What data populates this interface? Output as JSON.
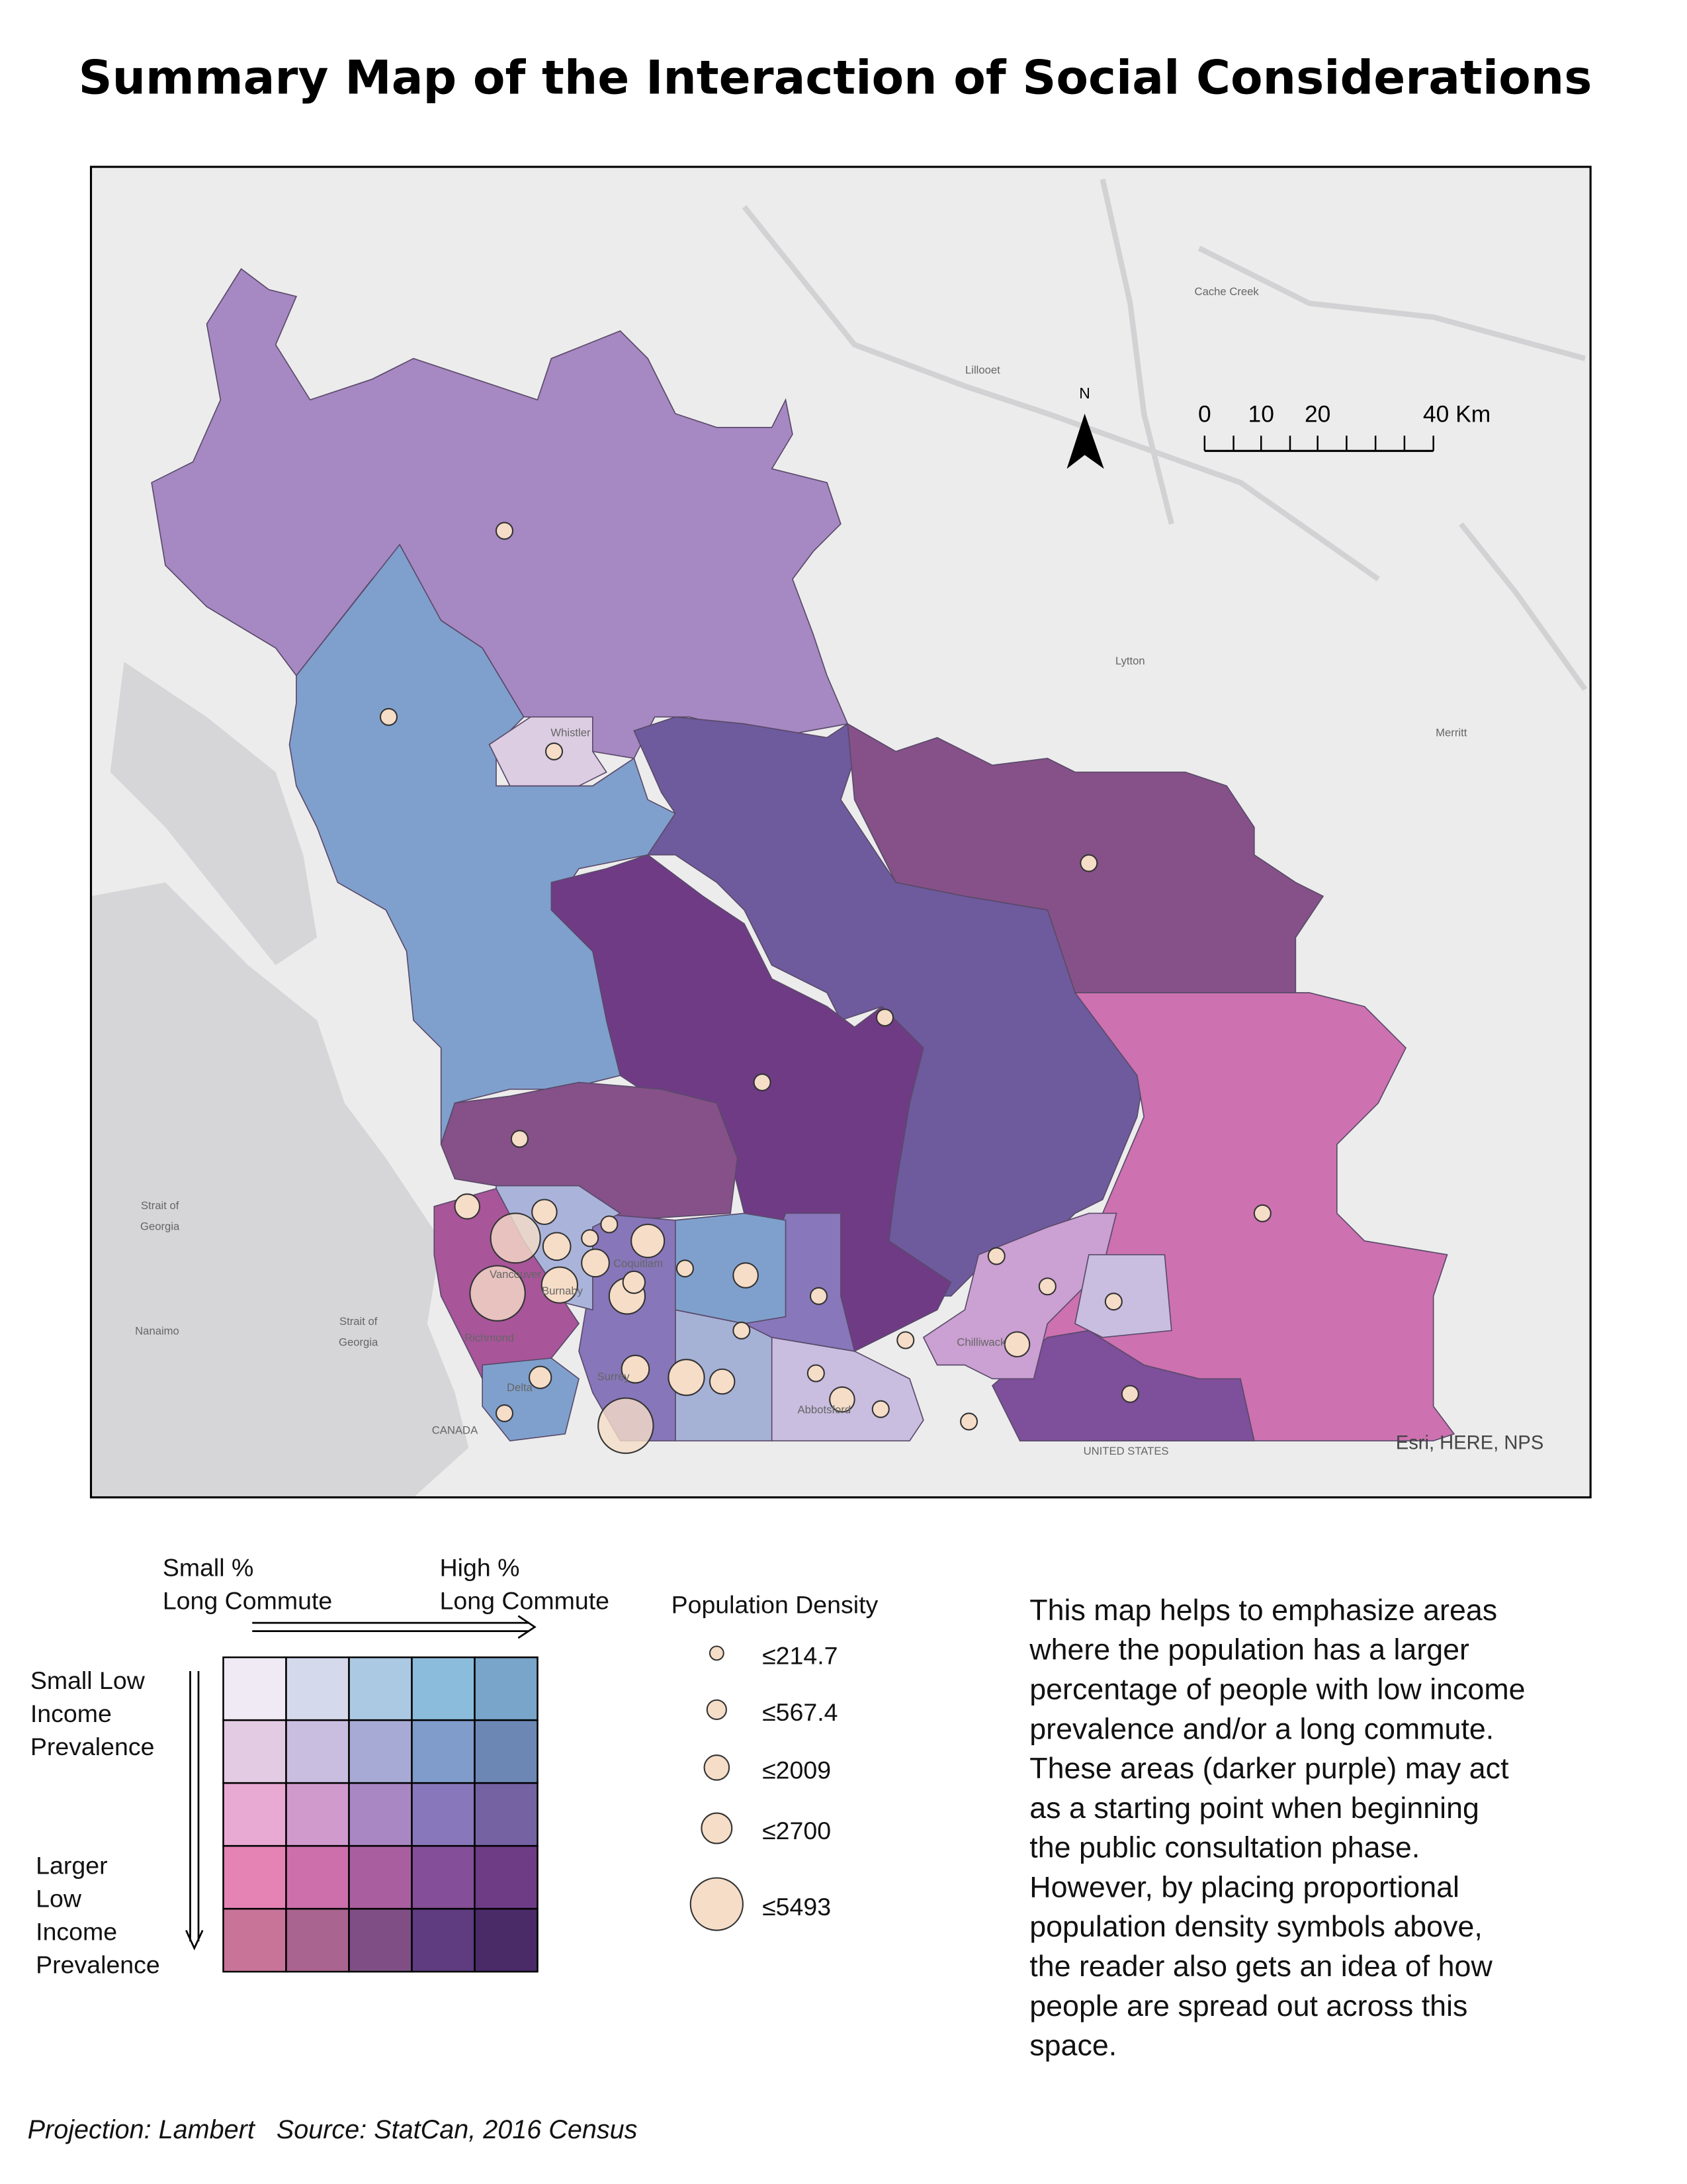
{
  "title": "Summary Map of the Interaction of Social Considerations",
  "map": {
    "labels": [
      "Cache Creek",
      "Lillooet",
      "Lytton",
      "Merritt",
      "Whistler",
      "Nanaimo",
      "Strait of",
      "Georgia",
      "Strait of",
      "Georgia",
      "Chilliwack",
      "Abbotsford",
      "Richmond",
      "Delta",
      "Surrey",
      "Coquitlam",
      "Burnaby",
      "Vancouver",
      "CANADA",
      "UNITED STATES"
    ],
    "north": "N",
    "scale_labels": [
      "0",
      "10",
      "20",
      "40 Km"
    ],
    "attribution": "Esri, HERE, NPS"
  },
  "legend": {
    "x_low": [
      "Small %",
      "Long Commute"
    ],
    "x_high": [
      "High %",
      "Long Commute"
    ],
    "y_low": [
      "Small Low",
      "Income",
      "Prevalence"
    ],
    "y_high": [
      "Larger",
      "Low",
      "Income",
      "Prevalence"
    ],
    "colors": [
      [
        "#efeaf3",
        "#d5d9ec",
        "#abc9e2",
        "#8cbcdc",
        "#78a5c9"
      ],
      [
        "#e3cce3",
        "#c9bde0",
        "#a6aad4",
        "#7f9cca",
        "#6d87b5"
      ],
      [
        "#e8a9d2",
        "#d09acd",
        "#a987c3",
        "#8878bb",
        "#7462a3"
      ],
      [
        "#e583b5",
        "#cd6faa",
        "#a95f9f",
        "#844f98",
        "#6e3b85"
      ],
      [
        "#c87499",
        "#a9648f",
        "#7e4e85",
        "#5e3c7f",
        "#4a2a67"
      ]
    ]
  },
  "density_legend": {
    "title": "Population Density",
    "classes": [
      "≤214.7",
      "≤567.4",
      "≤2009",
      "≤2700",
      "≤5493"
    ]
  },
  "description": [
    "This map helps to emphasize areas",
    "where the population has a larger",
    "percentage of people with low income",
    "prevalence and/or  a long commute.",
    "These areas (darker purple) may act",
    "as a starting point when beginning",
    "the public consultation phase.",
    "However, by placing proportional",
    "population density symbols above,",
    "the reader also gets an idea of how",
    "people are spread out across this",
    "space."
  ],
  "footer": "Projection: Lambert   Source: StatCan, 2016 Census"
}
